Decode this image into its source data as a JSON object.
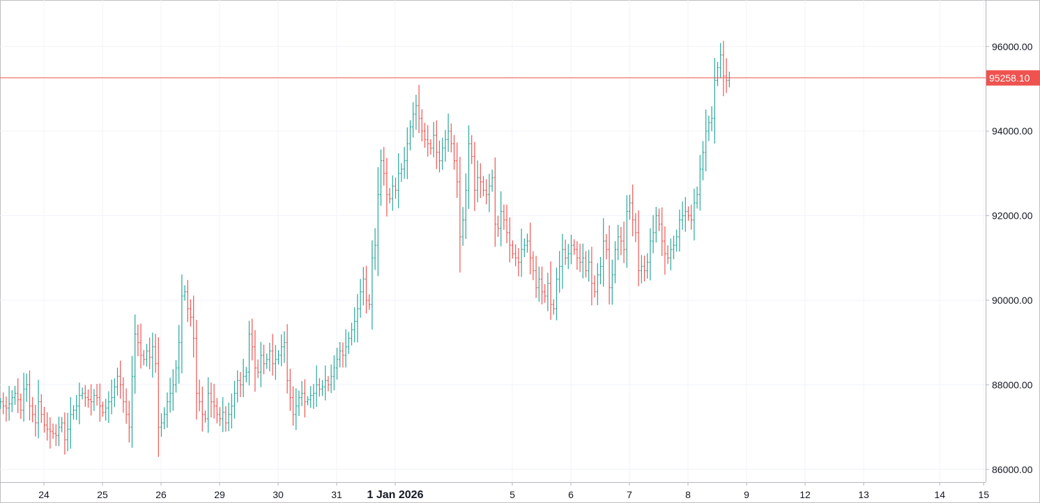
{
  "chart_data": {
    "type": "ohlc",
    "instrument_price_unit": "",
    "last_price": 95258.1,
    "last_price_label": "95258.10",
    "ylim": [
      85700,
      97100
    ],
    "y_ticks": [
      {
        "value": 96000,
        "label": "96000.00"
      },
      {
        "value": 94000,
        "label": "94000.00"
      },
      {
        "value": 92000,
        "label": "92000.00"
      },
      {
        "value": 90000,
        "label": "90000.00"
      },
      {
        "value": 88000,
        "label": "88000.00"
      },
      {
        "value": 86000,
        "label": "86000.00"
      }
    ],
    "x_ticks": [
      {
        "label": "24",
        "major": false
      },
      {
        "label": "25",
        "major": false
      },
      {
        "label": "26",
        "major": false
      },
      {
        "label": "29",
        "major": false
      },
      {
        "label": "30",
        "major": false
      },
      {
        "label": "31",
        "major": false
      },
      {
        "label": "1 Jan 2026",
        "major": true
      },
      {
        "label": "5",
        "major": false
      },
      {
        "label": "6",
        "major": false
      },
      {
        "label": "7",
        "major": false
      },
      {
        "label": "8",
        "major": false
      },
      {
        "label": "9",
        "major": false
      },
      {
        "label": "12",
        "major": false
      },
      {
        "label": "13",
        "major": false
      },
      {
        "label": "14",
        "major": false
      },
      {
        "label": "15",
        "major": false
      }
    ],
    "x_tick_bar_index": [
      15,
      35,
      55,
      75,
      95,
      115,
      135,
      175,
      195,
      215,
      235,
      255,
      275,
      295,
      321,
      336
    ],
    "closes": [
      87600,
      87500,
      87450,
      87550,
      87700,
      87800,
      87650,
      87400,
      87900,
      88000,
      87500,
      87300,
      87100,
      87600,
      87300,
      87050,
      86950,
      86900,
      86850,
      86800,
      87000,
      87100,
      86700,
      86950,
      87300,
      87400,
      87500,
      87750,
      87800,
      87700,
      87650,
      87600,
      87750,
      87700,
      87500,
      87350,
      87450,
      87600,
      87700,
      87950,
      88200,
      88000,
      87600,
      87300,
      87000,
      88200,
      89200,
      89000,
      88700,
      88600,
      88800,
      88650,
      88900,
      88500,
      87000,
      87100,
      87300,
      87600,
      87800,
      88000,
      88400,
      89000,
      90100,
      90200,
      89800,
      89600,
      89100,
      87800,
      87600,
      87300,
      87200,
      87800,
      87600,
      87500,
      87300,
      87200,
      87350,
      87100,
      87300,
      87500,
      87800,
      88100,
      88000,
      88200,
      88300,
      89200,
      88900,
      88400,
      88300,
      88700,
      88500,
      88600,
      88800,
      88500,
      88600,
      88700,
      88900,
      89000,
      88100,
      87700,
      87300,
      87500,
      87700,
      87800,
      87600,
      87650,
      87750,
      87800,
      88000,
      87900,
      87950,
      88100,
      88000,
      88200,
      88400,
      88600,
      88800,
      88700,
      88900,
      89100,
      89300,
      89500,
      89800,
      90200,
      90500,
      90000,
      89900,
      91000,
      91300,
      92500,
      93300,
      93000,
      92500,
      92400,
      92700,
      92600,
      93000,
      93100,
      93300,
      93700,
      94100,
      94400,
      94600,
      94300,
      94000,
      93800,
      93700,
      93600,
      93900,
      93500,
      93300,
      93600,
      93800,
      94000,
      93700,
      93300,
      92800,
      91500,
      91900,
      92600,
      93700,
      93400,
      92600,
      92900,
      92800,
      92600,
      92500,
      92700,
      92900,
      91800,
      91700,
      92100,
      91900,
      91600,
      91300,
      91100,
      91000,
      90900,
      91200,
      91300,
      91400,
      91000,
      90700,
      90300,
      90500,
      90200,
      90100,
      90400,
      89900,
      89800,
      90500,
      90800,
      91200,
      91000,
      91100,
      91300,
      91200,
      91000,
      90900,
      91000,
      90700,
      90900,
      90400,
      90200,
      90600,
      90800,
      91400,
      91200,
      90300,
      90600,
      91200,
      91500,
      91400,
      91200,
      92100,
      92300,
      91900,
      91600,
      90700,
      90800,
      90700,
      90900,
      91400,
      91600,
      92000,
      91800,
      91400,
      91100,
      91000,
      91200,
      91300,
      91500,
      91900,
      92000,
      92100,
      92000,
      91900,
      92300,
      92500,
      93100,
      93500,
      94000,
      94200,
      94300,
      95200,
      95500,
      95800,
      95300,
      95200,
      95258.1
    ]
  }
}
